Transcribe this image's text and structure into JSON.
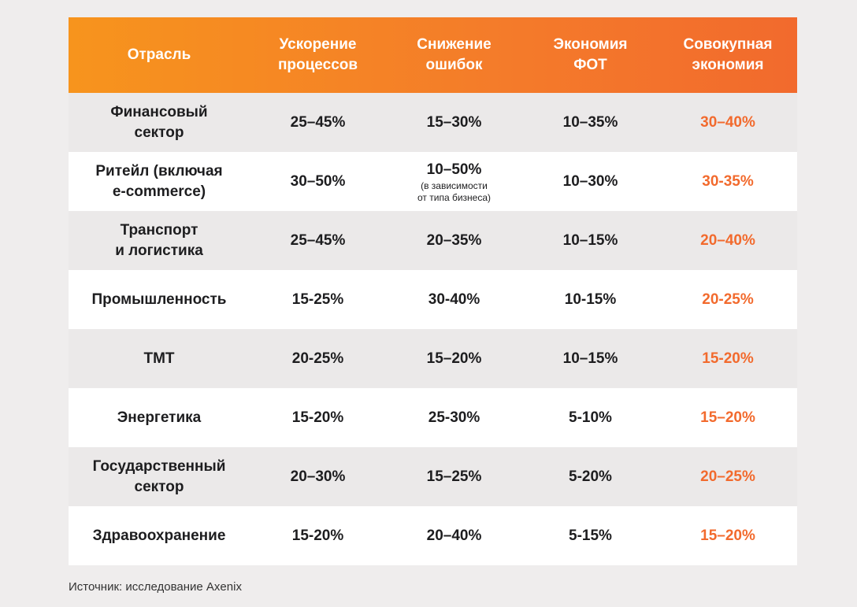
{
  "table": {
    "header": [
      "Отрасль",
      "Ускорение\nпроцессов",
      "Снижение\nошибок",
      "Экономия\nФОТ",
      "Совокупная\nэкономия"
    ],
    "rows": [
      {
        "cells": [
          "Финансовый\nсектор",
          "25–45%",
          "15–30%",
          "10–35%",
          "30–40%"
        ]
      },
      {
        "cells": [
          "Ритейл (включая\ne-commerce)",
          "30–50%",
          {
            "text": "10–50%",
            "note": "(в зависимости\nот типа бизнеса)"
          },
          "10–30%",
          "30-35%"
        ]
      },
      {
        "cells": [
          "Транспорт\nи логистика",
          "25–45%",
          "20–35%",
          "10–15%",
          "20–40%"
        ]
      },
      {
        "cells": [
          "Промышленность",
          "15-25%",
          "30-40%",
          "10-15%",
          "20-25%"
        ]
      },
      {
        "cells": [
          "ТМТ",
          "20-25%",
          "15–20%",
          "10–15%",
          "15-20%"
        ]
      },
      {
        "cells": [
          "Энергетика",
          "15-20%",
          "25-30%",
          "5-10%",
          "15–20%"
        ]
      },
      {
        "cells": [
          "Государственный\nсектор",
          "20–30%",
          "15–25%",
          "5-20%",
          "20–25%"
        ]
      },
      {
        "cells": [
          "Здравоохранение",
          "15-20%",
          "20–40%",
          "5-15%",
          "15–20%"
        ]
      }
    ]
  },
  "source": "Источник: исследование Axenix"
}
